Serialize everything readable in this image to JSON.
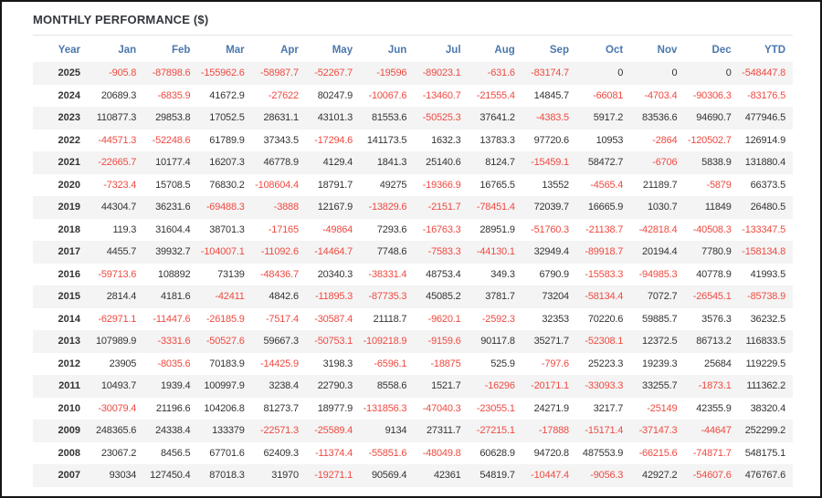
{
  "title": "MONTHLY PERFORMANCE ($)",
  "columns": [
    "Year",
    "Jan",
    "Feb",
    "Mar",
    "Apr",
    "May",
    "Jun",
    "Jul",
    "Aug",
    "Sep",
    "Oct",
    "Nov",
    "Dec",
    "YTD"
  ],
  "rows": [
    {
      "year": "2025",
      "values": [
        "-905.8",
        "-87898.6",
        "-155962.6",
        "-58987.7",
        "-52267.7",
        "-19596",
        "-89023.1",
        "-631.6",
        "-83174.7",
        "0",
        "0",
        "0",
        "-548447.8"
      ]
    },
    {
      "year": "2024",
      "values": [
        "20689.3",
        "-6835.9",
        "41672.9",
        "-27622",
        "80247.9",
        "-10067.6",
        "-13460.7",
        "-21555.4",
        "14845.7",
        "-66081",
        "-4703.4",
        "-90306.3",
        "-83176.5"
      ]
    },
    {
      "year": "2023",
      "values": [
        "110877.3",
        "29853.8",
        "17052.5",
        "28631.1",
        "43101.3",
        "81553.6",
        "-50525.3",
        "37641.2",
        "-4383.5",
        "5917.2",
        "83536.6",
        "94690.7",
        "477946.5"
      ]
    },
    {
      "year": "2022",
      "values": [
        "-44571.3",
        "-52248.6",
        "61789.9",
        "37343.5",
        "-17294.6",
        "141173.5",
        "1632.3",
        "13783.3",
        "97720.6",
        "10953",
        "-2864",
        "-120502.7",
        "126914.9"
      ]
    },
    {
      "year": "2021",
      "values": [
        "-22665.7",
        "10177.4",
        "16207.3",
        "46778.9",
        "4129.4",
        "1841.3",
        "25140.6",
        "8124.7",
        "-15459.1",
        "58472.7",
        "-6706",
        "5838.9",
        "131880.4"
      ]
    },
    {
      "year": "2020",
      "values": [
        "-7323.4",
        "15708.5",
        "76830.2",
        "-108604.4",
        "18791.7",
        "49275",
        "-19366.9",
        "16765.5",
        "13552",
        "-4565.4",
        "21189.7",
        "-5879",
        "66373.5"
      ]
    },
    {
      "year": "2019",
      "values": [
        "44304.7",
        "36231.6",
        "-69488.3",
        "-3888",
        "12167.9",
        "-13829.6",
        "-2151.7",
        "-78451.4",
        "72039.7",
        "16665.9",
        "1030.7",
        "11849",
        "26480.5"
      ]
    },
    {
      "year": "2018",
      "values": [
        "119.3",
        "31604.4",
        "38701.3",
        "-17165",
        "-49864",
        "7293.6",
        "-16763.3",
        "28951.9",
        "-51760.3",
        "-21138.7",
        "-42818.4",
        "-40508.3",
        "-133347.5"
      ]
    },
    {
      "year": "2017",
      "values": [
        "4455.7",
        "39932.7",
        "-104007.1",
        "-11092.6",
        "-14464.7",
        "7748.6",
        "-7583.3",
        "-44130.1",
        "32949.4",
        "-89918.7",
        "20194.4",
        "7780.9",
        "-158134.8"
      ]
    },
    {
      "year": "2016",
      "values": [
        "-59713.6",
        "108892",
        "73139",
        "-48436.7",
        "20340.3",
        "-38331.4",
        "48753.4",
        "349.3",
        "6790.9",
        "-15583.3",
        "-94985.3",
        "40778.9",
        "41993.5"
      ]
    },
    {
      "year": "2015",
      "values": [
        "2814.4",
        "4181.6",
        "-42411",
        "4842.6",
        "-11895.3",
        "-87735.3",
        "45085.2",
        "3781.7",
        "73204",
        "-58134.4",
        "7072.7",
        "-26545.1",
        "-85738.9"
      ]
    },
    {
      "year": "2014",
      "values": [
        "-62971.1",
        "-11447.6",
        "-26185.9",
        "-7517.4",
        "-30587.4",
        "21118.7",
        "-9620.1",
        "-2592.3",
        "32353",
        "70220.6",
        "59885.7",
        "3576.3",
        "36232.5"
      ]
    },
    {
      "year": "2013",
      "values": [
        "107989.9",
        "-3331.6",
        "-50527.6",
        "59667.3",
        "-50753.1",
        "-109218.9",
        "-9159.6",
        "90117.8",
        "35271.7",
        "-52308.1",
        "12372.5",
        "86713.2",
        "116833.5"
      ]
    },
    {
      "year": "2012",
      "values": [
        "23905",
        "-8035.6",
        "70183.9",
        "-14425.9",
        "3198.3",
        "-6596.1",
        "-18875",
        "525.9",
        "-797.6",
        "25223.3",
        "19239.3",
        "25684",
        "119229.5"
      ]
    },
    {
      "year": "2011",
      "values": [
        "10493.7",
        "1939.4",
        "100997.9",
        "3238.4",
        "22790.3",
        "8558.6",
        "1521.7",
        "-16296",
        "-20171.1",
        "-33093.3",
        "33255.7",
        "-1873.1",
        "111362.2"
      ]
    },
    {
      "year": "2010",
      "values": [
        "-30079.4",
        "21196.6",
        "104206.8",
        "81273.7",
        "18977.9",
        "-131856.3",
        "-47040.3",
        "-23055.1",
        "24271.9",
        "3217.7",
        "-25149",
        "42355.9",
        "38320.4"
      ]
    },
    {
      "year": "2009",
      "values": [
        "248365.6",
        "24338.4",
        "133379",
        "-22571.3",
        "-25589.4",
        "9134",
        "27311.7",
        "-27215.1",
        "-17888",
        "-15171.4",
        "-37147.3",
        "-44647",
        "252299.2"
      ]
    },
    {
      "year": "2008",
      "values": [
        "23067.2",
        "8456.5",
        "67701.6",
        "62409.3",
        "-11374.4",
        "-55851.6",
        "-48049.8",
        "60628.9",
        "94720.8",
        "487553.9",
        "-66215.6",
        "-74871.7",
        "548175.1"
      ]
    },
    {
      "year": "2007",
      "values": [
        "93034",
        "127450.4",
        "87018.3",
        "31970",
        "-19271.1",
        "90569.4",
        "42361",
        "54819.7",
        "-10447.4",
        "-9056.3",
        "42927.2",
        "-54607.6",
        "476767.6"
      ]
    }
  ],
  "colors": {
    "negative": "#ef4a41",
    "positive": "#333333",
    "header_blue": "#4a77ad",
    "stripe": "#f4f4f4",
    "title": "#33373d"
  }
}
